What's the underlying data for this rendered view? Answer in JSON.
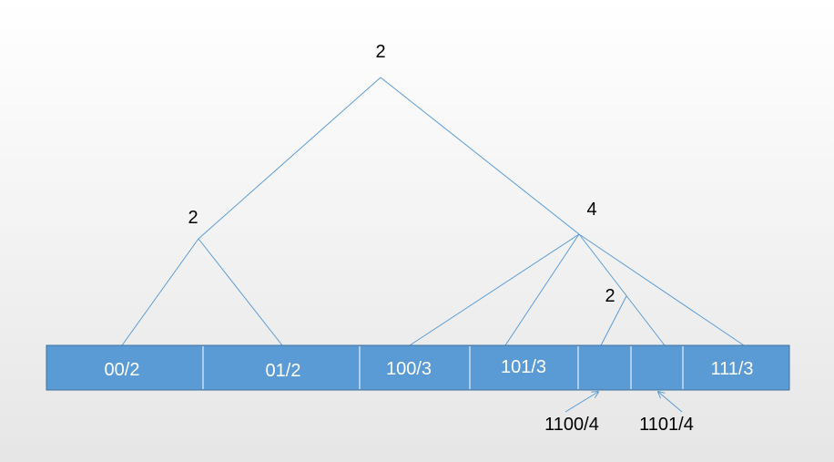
{
  "colors": {
    "segment_fill": "#5b9bd5",
    "segment_border": "#41719c",
    "branch_line": "#5b9bd5",
    "segment_text": "#ffffff",
    "node_text": "#000000"
  },
  "tree": {
    "root_label": "2",
    "left_node_label": "2",
    "right_node_label": "4",
    "inner_node_label": "2"
  },
  "segments": [
    {
      "label": "00/2"
    },
    {
      "label": "01/2"
    },
    {
      "label": "100/3"
    },
    {
      "label": "101/3"
    },
    {
      "label": ""
    },
    {
      "label": ""
    },
    {
      "label": "111/3"
    }
  ],
  "callouts": [
    {
      "label": "1100/4"
    },
    {
      "label": "1101/4"
    }
  ]
}
